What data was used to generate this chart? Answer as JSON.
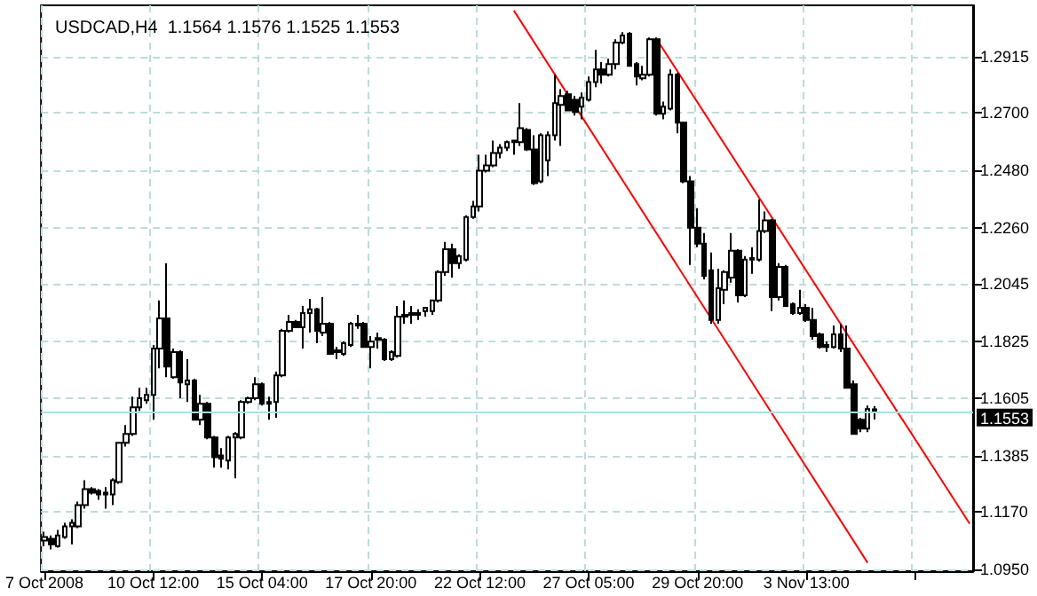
{
  "chart_data": {
    "type": "candlestick",
    "title": "USDCAD,H4  1.1564 1.1576 1.1525 1.1553",
    "categories": [
      "7 Oct 2008",
      null,
      null,
      null,
      null,
      null,
      null,
      null,
      null,
      null,
      null,
      null,
      null,
      null,
      null,
      null,
      "10 Oct 12:00",
      null,
      null,
      null,
      null,
      null,
      null,
      null,
      null,
      null,
      null,
      null,
      null,
      null,
      null,
      null,
      "15 Oct 04:00",
      null,
      null,
      null,
      null,
      null,
      null,
      null,
      null,
      null,
      null,
      null,
      null,
      null,
      null,
      null,
      "17 Oct 20:00",
      null,
      null,
      null,
      null,
      null,
      null,
      null,
      null,
      null,
      null,
      null,
      null,
      null,
      null,
      null,
      "22 Oct 12:00",
      null,
      null,
      null,
      null,
      null,
      null,
      null,
      null,
      null,
      null,
      null,
      null,
      null,
      null,
      null,
      "27 Oct 05:00",
      null,
      null,
      null,
      null,
      null,
      null,
      null,
      null,
      null,
      null,
      null,
      null,
      null,
      null,
      null,
      "29 Oct 20:00",
      null,
      null,
      null,
      null,
      null,
      null,
      null,
      null,
      null,
      null,
      null,
      null,
      null,
      null,
      null,
      "3 Nov 13:00",
      null,
      null,
      null,
      null,
      null,
      null,
      null,
      null,
      null,
      null,
      null,
      null,
      null,
      null,
      null,
      null,
      null,
      null,
      null,
      null,
      null,
      null,
      null,
      null
    ],
    "ylim": [
      1.0943,
      1.3113
    ],
    "yticks": [
      {
        "value": 1.095,
        "label": "1.0950"
      },
      {
        "value": 1.117,
        "label": "1.1170"
      },
      {
        "value": 1.1385,
        "label": "1.1385"
      },
      {
        "value": 1.1605,
        "label": "1.1605"
      },
      {
        "value": 1.1825,
        "label": "1.1825"
      },
      {
        "value": 1.2045,
        "label": "1.2045"
      },
      {
        "value": 1.226,
        "label": "1.2260"
      },
      {
        "value": 1.248,
        "label": "1.2480"
      },
      {
        "value": 1.27,
        "label": "1.2700"
      },
      {
        "value": 1.2915,
        "label": "1.2915"
      }
    ],
    "grid": true,
    "ref_lines": [
      {
        "axis": "y",
        "value": 1.1553,
        "label": "1.1553",
        "color": "#9ee6e6"
      }
    ],
    "series": [
      {
        "type": "candlestick",
        "color": "#000000",
        "ohlc": [
          [
            1.106,
            1.1094,
            1.1039,
            1.1074
          ],
          [
            1.1067,
            1.108,
            1.1026,
            1.1046
          ],
          [
            1.1039,
            1.1101,
            1.1033,
            1.108
          ],
          [
            1.1074,
            1.1128,
            1.1067,
            1.1115
          ],
          [
            1.1115,
            1.1142,
            1.1046,
            1.1128
          ],
          [
            1.1115,
            1.121,
            1.1108,
            1.1196
          ],
          [
            1.1196,
            1.1292,
            1.1183,
            1.1258
          ],
          [
            1.1258,
            1.1265,
            1.1237,
            1.1244
          ],
          [
            1.1251,
            1.1258,
            1.1217,
            1.1237
          ],
          [
            1.1237,
            1.1265,
            1.1183,
            1.1244
          ],
          [
            1.1237,
            1.1299,
            1.1196,
            1.1292
          ],
          [
            1.1285,
            1.1435,
            1.1278,
            1.1435
          ],
          [
            1.1435,
            1.1503,
            1.1421,
            1.1469
          ],
          [
            1.1469,
            1.1612,
            1.1462,
            1.1571
          ],
          [
            1.1571,
            1.1646,
            1.1558,
            1.1606
          ],
          [
            1.1599,
            1.1646,
            1.1585,
            1.1619
          ],
          [
            1.1619,
            1.181,
            1.1524,
            1.1797
          ],
          [
            1.1797,
            1.1981,
            1.1721,
            1.1912
          ],
          [
            1.1912,
            1.2124,
            1.1687,
            1.1728
          ],
          [
            1.1687,
            1.1797,
            1.1681,
            1.1783
          ],
          [
            1.1783,
            1.179,
            1.1606,
            1.1667
          ],
          [
            1.166,
            1.1756,
            1.1592,
            1.1674
          ],
          [
            1.1674,
            1.1681,
            1.1524,
            1.1524
          ],
          [
            1.1524,
            1.1619,
            1.1503,
            1.1585
          ],
          [
            1.1585,
            1.1592,
            1.1449,
            1.1456
          ],
          [
            1.1456,
            1.1462,
            1.134,
            1.138
          ],
          [
            1.1387,
            1.1415,
            1.134,
            1.1374
          ],
          [
            1.1367,
            1.1462,
            1.1333,
            1.1456
          ],
          [
            1.1456,
            1.1476,
            1.1299,
            1.1469
          ],
          [
            1.1456,
            1.1599,
            1.1449,
            1.1592
          ],
          [
            1.1592,
            1.1612,
            1.1585,
            1.1606
          ],
          [
            1.1606,
            1.1687,
            1.1599,
            1.166
          ],
          [
            1.166,
            1.1667,
            1.1578,
            1.1585
          ],
          [
            1.1592,
            1.1612,
            1.1524,
            1.1585
          ],
          [
            1.1592,
            1.1708,
            1.1531,
            1.1694
          ],
          [
            1.1694,
            1.1872,
            1.1687,
            1.1865
          ],
          [
            1.1865,
            1.1926,
            1.1858,
            1.1899
          ],
          [
            1.1899,
            1.1906,
            1.1878,
            1.1878
          ],
          [
            1.1878,
            1.196,
            1.1797,
            1.1933
          ],
          [
            1.1933,
            1.1987,
            1.1858,
            1.1947
          ],
          [
            1.1947,
            1.1953,
            1.1817,
            1.1865
          ],
          [
            1.1858,
            1.1994,
            1.1844,
            1.1892
          ],
          [
            1.1892,
            1.1899,
            1.1776,
            1.1776
          ],
          [
            1.1783,
            1.1803,
            1.1756,
            1.179
          ],
          [
            1.1776,
            1.1824,
            1.1769,
            1.1817
          ],
          [
            1.181,
            1.1899,
            1.1803,
            1.1892
          ],
          [
            1.1885,
            1.1926,
            1.1872,
            1.1892
          ],
          [
            1.1892,
            1.1899,
            1.1803,
            1.1803
          ],
          [
            1.1803,
            1.1844,
            1.1721,
            1.1824
          ],
          [
            1.1831,
            1.1858,
            1.1797,
            1.1837
          ],
          [
            1.1831,
            1.1837,
            1.1749,
            1.1756
          ],
          [
            1.1756,
            1.179,
            1.1749,
            1.1783
          ],
          [
            1.1769,
            1.196,
            1.1762,
            1.1919
          ],
          [
            1.1919,
            1.1981,
            1.1892,
            1.1926
          ],
          [
            1.1926,
            1.196,
            1.1892,
            1.1933
          ],
          [
            1.1926,
            1.1947,
            1.1906,
            1.1933
          ],
          [
            1.194,
            1.1953,
            1.1919,
            1.1953
          ],
          [
            1.194,
            1.1981,
            1.1926,
            1.1981
          ],
          [
            1.1981,
            1.2097,
            1.1974,
            1.209
          ],
          [
            1.209,
            1.2206,
            1.2076,
            1.2178
          ],
          [
            1.2178,
            1.2199,
            1.2069,
            1.2124
          ],
          [
            1.2124,
            1.2158,
            1.2103,
            1.2151
          ],
          [
            1.2138,
            1.2308,
            1.2131,
            1.2301
          ],
          [
            1.2301,
            1.2363,
            1.2294,
            1.2342
          ],
          [
            1.2342,
            1.254,
            1.2322,
            1.2479
          ],
          [
            1.2479,
            1.254,
            1.2472,
            1.2499
          ],
          [
            1.2499,
            1.2594,
            1.2492,
            1.2547
          ],
          [
            1.2547,
            1.2581,
            1.2526,
            1.2567
          ],
          [
            1.2567,
            1.2594,
            1.2554,
            1.2588
          ],
          [
            1.2588,
            1.2594,
            1.254,
            1.2594
          ],
          [
            1.2588,
            1.2738,
            1.2574,
            1.2642
          ],
          [
            1.2635,
            1.2642,
            1.2554,
            1.256
          ],
          [
            1.256,
            1.2615,
            1.2424,
            1.2431
          ],
          [
            1.2438,
            1.2622,
            1.2431,
            1.2615
          ],
          [
            1.2519,
            1.2629,
            1.2458,
            1.2615
          ],
          [
            1.2615,
            1.2847,
            1.2594,
            1.2738
          ],
          [
            1.2731,
            1.2792,
            1.2574,
            1.2765
          ],
          [
            1.2772,
            1.2785,
            1.271,
            1.271
          ],
          [
            1.2751,
            1.2765,
            1.269,
            1.2704
          ],
          [
            1.2724,
            1.2779,
            1.2676,
            1.2758
          ],
          [
            1.2751,
            1.284,
            1.2744,
            1.2819
          ],
          [
            1.2819,
            1.2942,
            1.2799,
            1.2867
          ],
          [
            1.2867,
            1.2895,
            1.2813,
            1.2847
          ],
          [
            1.2847,
            1.2908,
            1.284,
            1.2888
          ],
          [
            1.2888,
            1.2983,
            1.2867,
            1.297
          ],
          [
            1.297,
            1.301,
            1.2963,
            1.2997
          ],
          [
            1.3004,
            1.301,
            1.2881,
            1.2881
          ],
          [
            1.2888,
            1.2895,
            1.2806,
            1.284
          ],
          [
            1.2833,
            1.2881,
            1.2826,
            1.2847
          ],
          [
            1.2847,
            1.299,
            1.284,
            1.2983
          ],
          [
            1.2983,
            1.299,
            1.269,
            1.2697
          ],
          [
            1.2697,
            1.2744,
            1.2676,
            1.2724
          ],
          [
            1.2717,
            1.2867,
            1.271,
            1.2847
          ],
          [
            1.2847,
            1.2854,
            1.2622,
            1.2663
          ],
          [
            1.2663,
            1.2663,
            1.2431,
            1.2438
          ],
          [
            1.2438,
            1.2458,
            1.2117,
            1.226
          ],
          [
            1.226,
            1.2335,
            1.2185,
            1.2199
          ],
          [
            1.2199,
            1.224,
            1.2062,
            1.2076
          ],
          [
            1.2097,
            1.2165,
            1.1892,
            1.1906
          ],
          [
            1.1906,
            1.2103,
            1.1892,
            1.2028
          ],
          [
            1.2022,
            1.2097,
            1.1967,
            1.209
          ],
          [
            1.2069,
            1.224,
            1.2049,
            1.2172
          ],
          [
            1.2172,
            1.2178,
            1.1974,
            1.2001
          ],
          [
            1.2001,
            1.2151,
            1.1994,
            1.2138
          ],
          [
            1.2138,
            1.2185,
            1.2083,
            1.2144
          ],
          [
            1.2138,
            1.2369,
            1.2131,
            1.2247
          ],
          [
            1.2247,
            1.2322,
            1.224,
            1.2288
          ],
          [
            1.2288,
            1.2294,
            1.194,
            1.1994
          ],
          [
            1.1994,
            1.2124,
            1.1981,
            1.211
          ],
          [
            1.211,
            1.2117,
            1.196,
            1.196
          ],
          [
            1.1967,
            1.1974,
            1.1926,
            1.1933
          ],
          [
            1.1933,
            1.2022,
            1.1926,
            1.1953
          ],
          [
            1.1953,
            1.1967,
            1.1899,
            1.1906
          ],
          [
            1.1906,
            1.1953,
            1.1831,
            1.1844
          ],
          [
            1.1851,
            1.1858,
            1.1797,
            1.1803
          ],
          [
            1.181,
            1.1824,
            1.1783,
            1.1803
          ],
          [
            1.1803,
            1.1885,
            1.1797,
            1.1851
          ],
          [
            1.1851,
            1.1892,
            1.1783,
            1.1797
          ],
          [
            1.1797,
            1.1885,
            1.1646,
            1.1646
          ],
          [
            1.166,
            1.1674,
            1.1469,
            1.1469
          ],
          [
            1.1524,
            1.1531,
            1.1476,
            1.149
          ],
          [
            1.149,
            1.1578,
            1.1476,
            1.1565
          ],
          [
            1.1564,
            1.1576,
            1.1525,
            1.1553
          ],
          null,
          null,
          null,
          null,
          null,
          null,
          null,
          null,
          null,
          null,
          null,
          null,
          null,
          null
        ]
      },
      {
        "type": "line",
        "color": "#ff0000",
        "values": [
          null,
          null,
          null,
          null,
          null,
          null,
          null,
          null,
          null,
          null,
          null,
          null,
          null,
          null,
          null,
          null,
          null,
          null,
          null,
          null,
          null,
          null,
          null,
          null,
          null,
          null,
          null,
          null,
          null,
          null,
          null,
          null,
          null,
          null,
          null,
          null,
          null,
          null,
          null,
          null,
          null,
          null,
          null,
          null,
          null,
          null,
          null,
          null,
          null,
          null,
          null,
          null,
          null,
          null,
          null,
          null,
          null,
          null,
          null,
          null,
          null,
          null,
          null,
          null,
          null,
          null,
          null,
          null,
          null,
          1.3093,
          null,
          null,
          null,
          null,
          null,
          null,
          null,
          null,
          null,
          null,
          null,
          null,
          null,
          null,
          null,
          null,
          null,
          null,
          null,
          null,
          null,
          null,
          null,
          null,
          null,
          null,
          null,
          null,
          null,
          null,
          null,
          null,
          null,
          null,
          null,
          null,
          null,
          null,
          null,
          null,
          null,
          null,
          null,
          null,
          null,
          null,
          null,
          null,
          null,
          null,
          null,
          1.0975,
          null,
          null,
          null,
          null,
          null,
          null,
          null,
          null,
          null,
          null,
          null,
          null,
          null,
          null,
          null
        ]
      },
      {
        "type": "line",
        "color": "#ff0000",
        "values": [
          null,
          null,
          null,
          null,
          null,
          null,
          null,
          null,
          null,
          null,
          null,
          null,
          null,
          null,
          null,
          null,
          null,
          null,
          null,
          null,
          null,
          null,
          null,
          null,
          null,
          null,
          null,
          null,
          null,
          null,
          null,
          null,
          null,
          null,
          null,
          null,
          null,
          null,
          null,
          null,
          null,
          null,
          null,
          null,
          null,
          null,
          null,
          null,
          null,
          null,
          null,
          null,
          null,
          null,
          null,
          null,
          null,
          null,
          null,
          null,
          null,
          null,
          null,
          null,
          null,
          null,
          null,
          null,
          null,
          null,
          null,
          null,
          null,
          null,
          null,
          null,
          null,
          null,
          null,
          null,
          null,
          null,
          null,
          null,
          null,
          null,
          null,
          null,
          null,
          null,
          1.2983,
          null,
          null,
          null,
          null,
          null,
          null,
          null,
          null,
          null,
          null,
          null,
          null,
          null,
          null,
          null,
          null,
          null,
          null,
          null,
          null,
          null,
          null,
          null,
          null,
          null,
          null,
          null,
          null,
          null,
          null,
          null,
          null,
          null,
          null,
          null,
          null,
          null,
          null,
          null,
          null,
          null,
          null,
          null,
          null,
          null,
          1.1125
        ]
      }
    ]
  }
}
